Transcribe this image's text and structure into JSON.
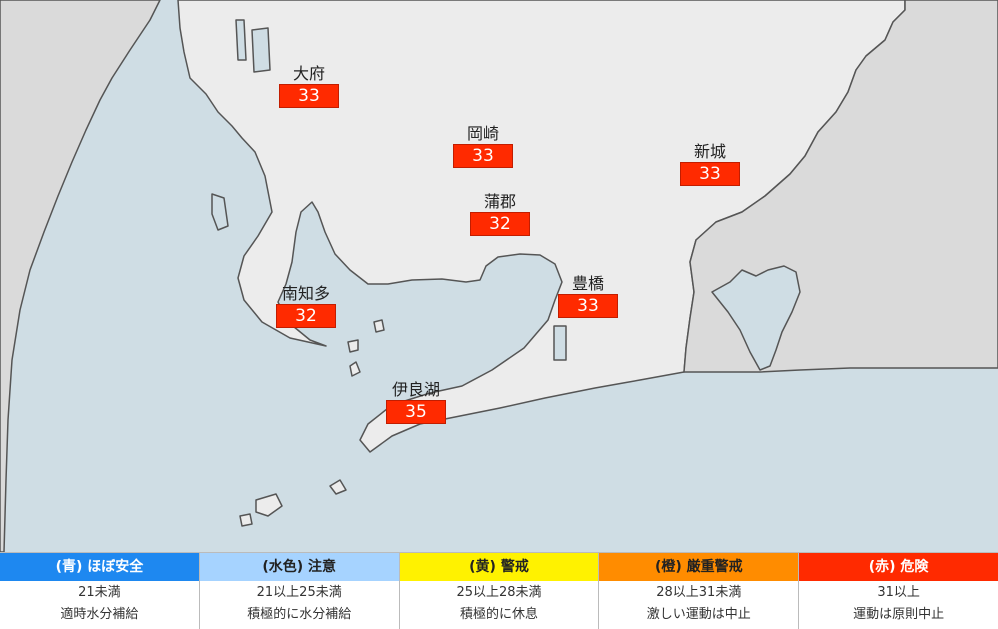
{
  "map": {
    "colors": {
      "water": "#cfdde4",
      "land_main": "#ececec",
      "land_other": "#dadada",
      "coast": "#555555"
    },
    "stations": [
      {
        "id": "obu",
        "name": "大府",
        "value": "33"
      },
      {
        "id": "okazaki",
        "name": "岡崎",
        "value": "33"
      },
      {
        "id": "shinshiro",
        "name": "新城",
        "value": "33"
      },
      {
        "id": "gamagori",
        "name": "蒲郡",
        "value": "32"
      },
      {
        "id": "toyohashi",
        "name": "豊橋",
        "value": "33"
      },
      {
        "id": "minamichita",
        "name": "南知多",
        "value": "32"
      },
      {
        "id": "irago",
        "name": "伊良湖",
        "value": "35"
      }
    ],
    "value_color": "#ff2a00"
  },
  "legend": [
    {
      "header": "(青) ほぼ安全",
      "range": "21未満",
      "desc": "適時水分補給",
      "bg": "#1e88f0",
      "fg": "#ffffff"
    },
    {
      "header": "(水色) 注意",
      "range": "21以上25未満",
      "desc": "積極的に水分補給",
      "bg": "#a6d3ff",
      "fg": "#222222"
    },
    {
      "header": "(黄) 警戒",
      "range": "25以上28未満",
      "desc": "積極的に休息",
      "bg": "#fff200",
      "fg": "#222222"
    },
    {
      "header": "(橙) 厳重警戒",
      "range": "28以上31未満",
      "desc": "激しい運動は中止",
      "bg": "#ff8c00",
      "fg": "#222222"
    },
    {
      "header": "(赤) 危険",
      "range": "31以上",
      "desc": "運動は原則中止",
      "bg": "#ff2a00",
      "fg": "#ffffff"
    }
  ]
}
